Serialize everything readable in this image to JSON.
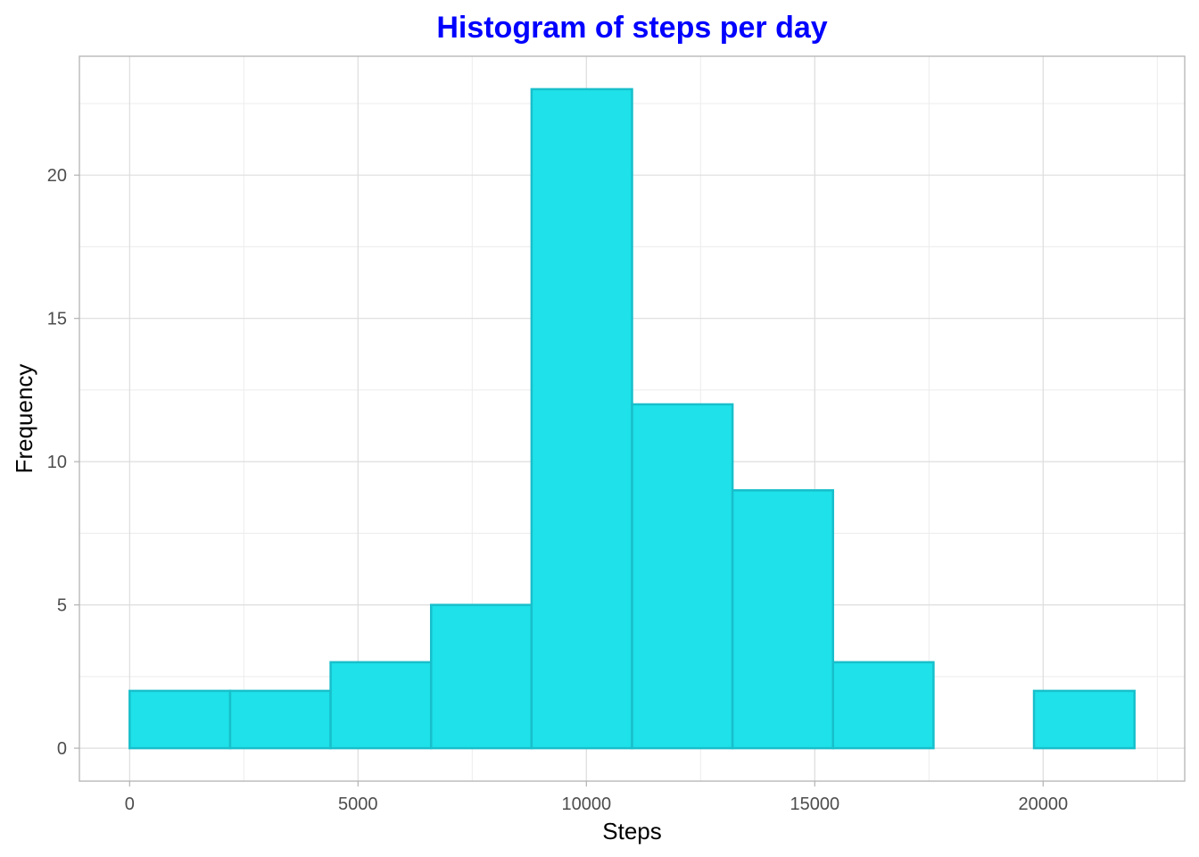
{
  "chart_data": {
    "type": "bar",
    "title": "Histogram of steps per day",
    "xlabel": "Steps",
    "ylabel": "Frequency",
    "bins": [
      {
        "x_start": 0,
        "x_end": 2200,
        "count": 2
      },
      {
        "x_start": 2200,
        "x_end": 4400,
        "count": 2
      },
      {
        "x_start": 4400,
        "x_end": 6600,
        "count": 3
      },
      {
        "x_start": 6600,
        "x_end": 8800,
        "count": 5
      },
      {
        "x_start": 8800,
        "x_end": 11000,
        "count": 23
      },
      {
        "x_start": 11000,
        "x_end": 13200,
        "count": 12
      },
      {
        "x_start": 13200,
        "x_end": 15400,
        "count": 9
      },
      {
        "x_start": 15400,
        "x_end": 17600,
        "count": 3
      },
      {
        "x_start": 17600,
        "x_end": 19800,
        "count": 0
      },
      {
        "x_start": 19800,
        "x_end": 22000,
        "count": 2
      }
    ],
    "xlim": [
      -1100,
      23100
    ],
    "ylim": [
      -1.15,
      24.15
    ],
    "x_ticks": [
      "0",
      "5000",
      "10000",
      "15000",
      "20000"
    ],
    "y_ticks": [
      "0",
      "5",
      "10",
      "15",
      "20"
    ],
    "grid": true,
    "legend": "none",
    "colors": {
      "title": "#0000ff",
      "bar_fill": "#1ee1e9",
      "bar_stroke": "#18bfcb",
      "grid_major": "#dddddd",
      "grid_minor": "#ececec",
      "panel_border": "#b3b3b3"
    }
  }
}
